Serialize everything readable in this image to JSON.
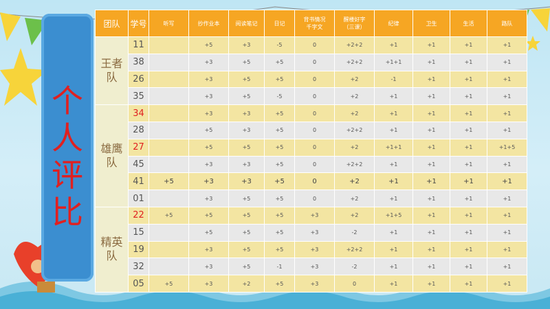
{
  "side_title": [
    "个",
    "人",
    "评",
    "比"
  ],
  "columns": [
    "团队",
    "学号",
    "听写",
    "抄作业本",
    "阅读笔记",
    "日记",
    "背书情况\n千字文",
    "醒楼好字\n（三课）",
    "纪律",
    "卫生",
    "生活",
    "路队"
  ],
  "teams": [
    {
      "name": "王者\n队",
      "rows": [
        {
          "id": "11",
          "red": false,
          "cells": [
            "",
            "+5",
            "+3",
            "-5",
            "0",
            "+2+2",
            "+1",
            "+1",
            "+1",
            "+1"
          ]
        },
        {
          "id": "38",
          "red": false,
          "cells": [
            "",
            "+3",
            "+5",
            "+5",
            "0",
            "+2+2",
            "+1+1",
            "+1",
            "+1",
            "+1"
          ]
        },
        {
          "id": "26",
          "red": false,
          "cells": [
            "",
            "+3",
            "+5",
            "+5",
            "0",
            "+2",
            "-1",
            "+1",
            "+1",
            "+1"
          ]
        },
        {
          "id": "35",
          "red": false,
          "cells": [
            "",
            "+3",
            "+5",
            "-5",
            "0",
            "+2",
            "+1",
            "+1",
            "+1",
            "+1"
          ]
        }
      ]
    },
    {
      "name": "雄鹰\n队",
      "rows": [
        {
          "id": "34",
          "red": true,
          "cells": [
            "",
            "+3",
            "+3",
            "+5",
            "0",
            "+2",
            "+1",
            "+1",
            "+1",
            "+1"
          ]
        },
        {
          "id": "28",
          "red": false,
          "cells": [
            "",
            "+5",
            "+3",
            "+5",
            "0",
            "+2+2",
            "+1",
            "+1",
            "+1",
            "+1"
          ]
        },
        {
          "id": "27",
          "red": true,
          "cells": [
            "",
            "+5",
            "+5",
            "+5",
            "0",
            "+2",
            "+1+1",
            "+1",
            "+1",
            "+1+5"
          ]
        },
        {
          "id": "45",
          "red": false,
          "cells": [
            "",
            "+3",
            "+3",
            "+5",
            "0",
            "+2+2",
            "+1",
            "+1",
            "+1",
            "+1"
          ]
        },
        {
          "id": "41",
          "red": false,
          "cells": [
            "+5",
            "+3",
            "+3",
            "+5",
            "0",
            "+2",
            "+1",
            "+1",
            "+1",
            "+1"
          ]
        },
        {
          "id": "01",
          "red": false,
          "cells": [
            "",
            "+3",
            "+5",
            "+5",
            "0",
            "+2",
            "+1",
            "+1",
            "+1",
            "+1"
          ]
        }
      ]
    },
    {
      "name": "精英\n队",
      "rows": [
        {
          "id": "22",
          "red": true,
          "cells": [
            "+5",
            "+5",
            "+5",
            "+5",
            "+3",
            "+2",
            "+1+5",
            "+1",
            "+1",
            "+1"
          ]
        },
        {
          "id": "15",
          "red": false,
          "cells": [
            "",
            "+5",
            "+5",
            "+5",
            "+3",
            "-2",
            "+1",
            "+1",
            "+1",
            "+1"
          ]
        },
        {
          "id": "19",
          "red": false,
          "cells": [
            "",
            "+3",
            "+5",
            "+5",
            "+3",
            "+2+2",
            "+1",
            "+1",
            "+1",
            "+1"
          ]
        },
        {
          "id": "32",
          "red": false,
          "cells": [
            "",
            "+3",
            "+5",
            "-1",
            "+3",
            "-2",
            "+1",
            "+1",
            "+1",
            "+1"
          ]
        },
        {
          "id": "05",
          "red": false,
          "cells": [
            "+5",
            "+3",
            "+2",
            "+5",
            "+3",
            "0",
            "+1",
            "+1",
            "+1",
            "+1"
          ]
        }
      ]
    }
  ],
  "colors": {
    "header": "#f6a623",
    "panel": "#3b8ed0",
    "title": "#e02020",
    "row_yellow": "#f3e5a2",
    "row_gray": "#e8e8e8"
  }
}
